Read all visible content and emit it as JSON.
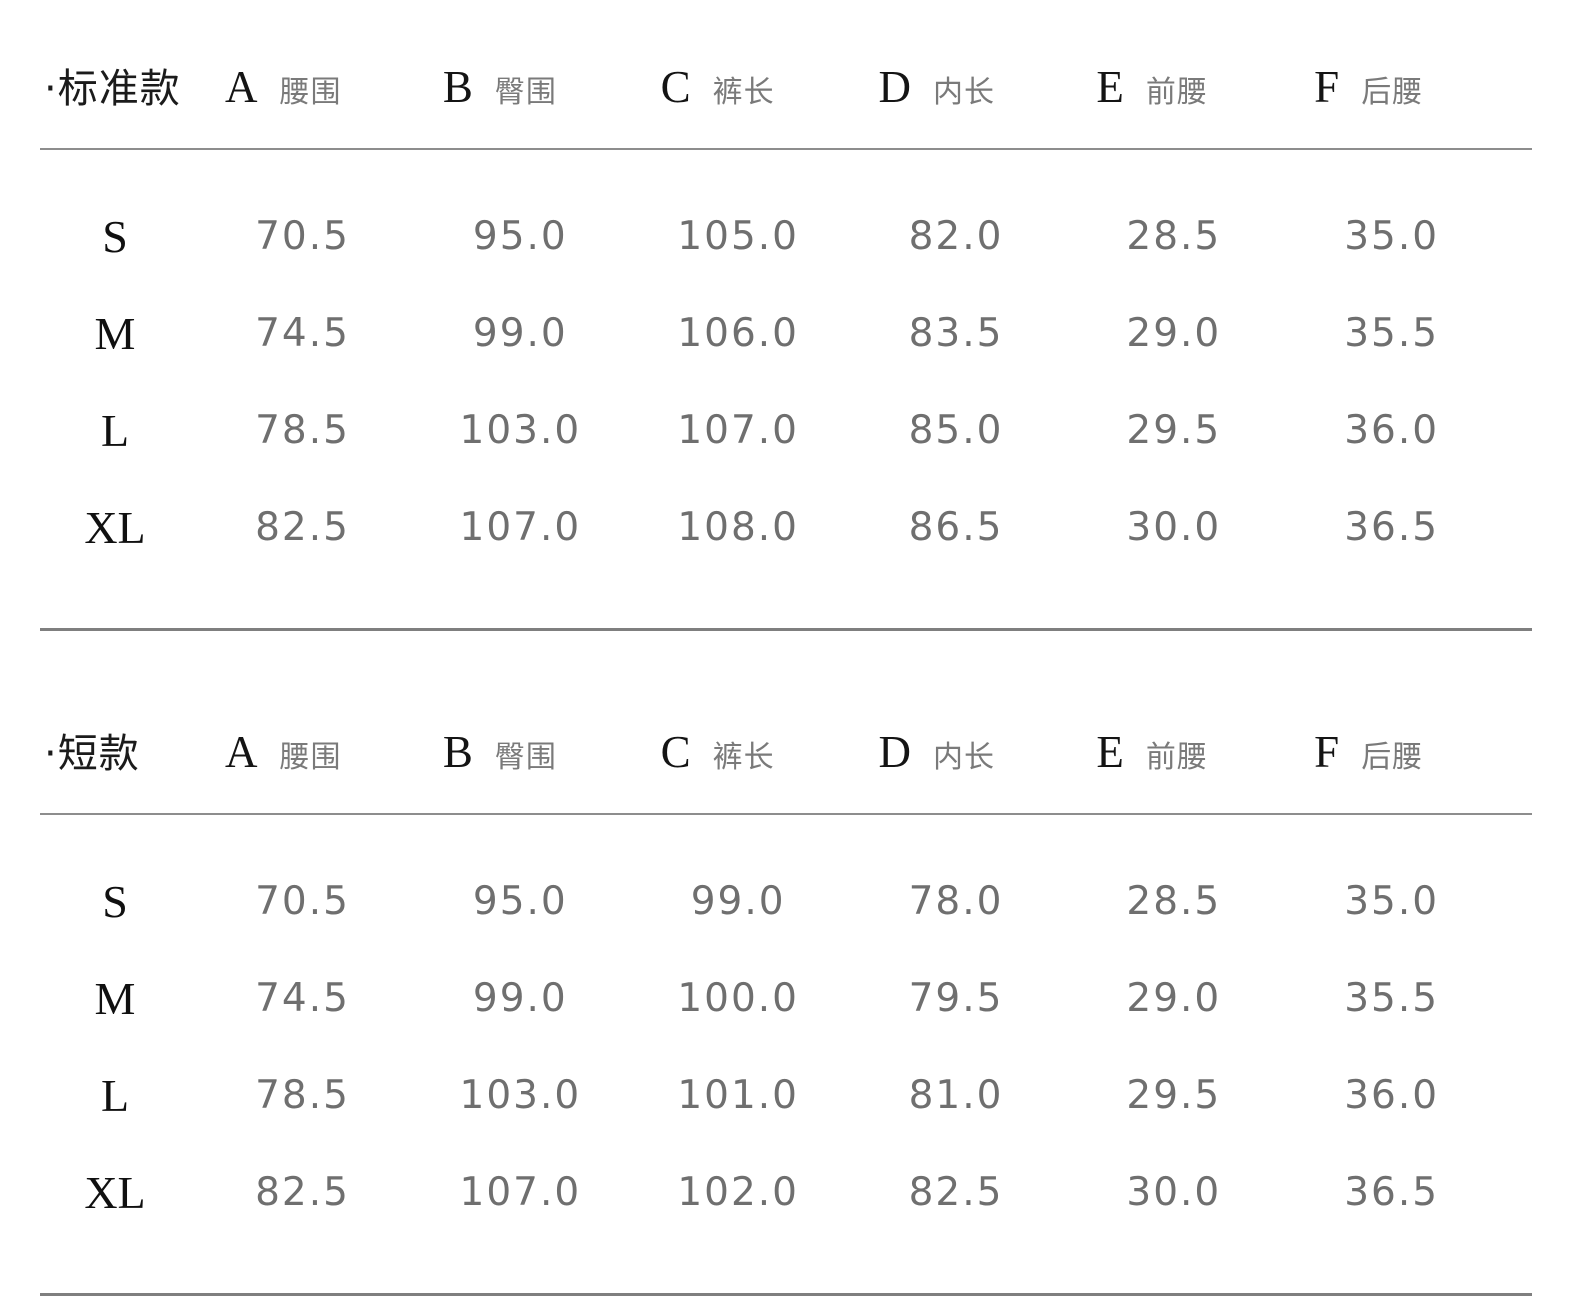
{
  "colors": {
    "background": "#ffffff",
    "heading_text": "#1b1b1b",
    "column_letter": "#141414",
    "column_label": "#7a7a7a",
    "value_text": "#6f6f6f",
    "rule_line": "#8d8d8d"
  },
  "tables": [
    {
      "title": "·标准款",
      "columns": [
        {
          "letter": "A",
          "label": "腰围"
        },
        {
          "letter": "B",
          "label": "臀围"
        },
        {
          "letter": "C",
          "label": "裤长"
        },
        {
          "letter": "D",
          "label": "内长"
        },
        {
          "letter": "E",
          "label": "前腰"
        },
        {
          "letter": "F",
          "label": "后腰"
        }
      ],
      "rows": [
        {
          "size": "S",
          "values": [
            "70.5",
            "95.0",
            "105.0",
            "82.0",
            "28.5",
            "35.0"
          ]
        },
        {
          "size": "M",
          "values": [
            "74.5",
            "99.0",
            "106.0",
            "83.5",
            "29.0",
            "35.5"
          ]
        },
        {
          "size": "L",
          "values": [
            "78.5",
            "103.0",
            "107.0",
            "85.0",
            "29.5",
            "36.0"
          ]
        },
        {
          "size": "XL",
          "values": [
            "82.5",
            "107.0",
            "108.0",
            "86.5",
            "30.0",
            "36.5"
          ]
        }
      ]
    },
    {
      "title": "·短款",
      "columns": [
        {
          "letter": "A",
          "label": "腰围"
        },
        {
          "letter": "B",
          "label": "臀围"
        },
        {
          "letter": "C",
          "label": "裤长"
        },
        {
          "letter": "D",
          "label": "内长"
        },
        {
          "letter": "E",
          "label": "前腰"
        },
        {
          "letter": "F",
          "label": "后腰"
        }
      ],
      "rows": [
        {
          "size": "S",
          "values": [
            "70.5",
            "95.0",
            "99.0",
            "78.0",
            "28.5",
            "35.0"
          ]
        },
        {
          "size": "M",
          "values": [
            "74.5",
            "99.0",
            "100.0",
            "79.5",
            "29.0",
            "35.5"
          ]
        },
        {
          "size": "L",
          "values": [
            "78.5",
            "103.0",
            "101.0",
            "81.0",
            "29.5",
            "36.0"
          ]
        },
        {
          "size": "XL",
          "values": [
            "82.5",
            "107.0",
            "102.0",
            "82.5",
            "30.0",
            "36.5"
          ]
        }
      ]
    }
  ]
}
